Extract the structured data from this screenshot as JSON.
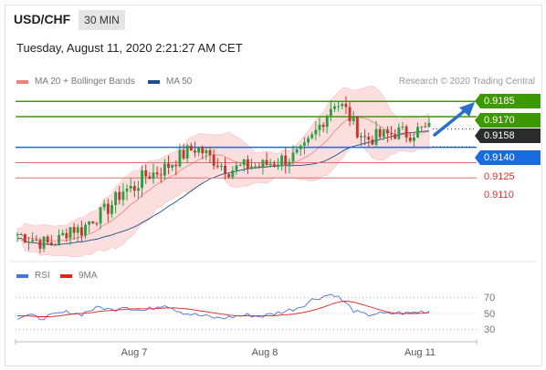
{
  "header": {
    "symbol": "USD/CHF",
    "timeframe": "30 MIN"
  },
  "datetime": "Tuesday, August 11, 2020 2:21:27 AM CET",
  "legend": {
    "main": [
      {
        "label": "MA 20 + Bollinger Bands",
        "color": "#f08080"
      },
      {
        "label": "MA 50",
        "color": "#1f4e8c"
      }
    ],
    "rsi": [
      {
        "label": "RSI",
        "color": "#4a72d8"
      },
      {
        "label": "9MA",
        "color": "#e02020"
      }
    ]
  },
  "copyright": "Research © 2020 Trading Central",
  "price_labels": [
    {
      "value": "0.9185",
      "style": "filled",
      "color": "#3c9a00"
    },
    {
      "value": "0.9170",
      "style": "filled",
      "color": "#3c9a00"
    },
    {
      "value": "0.9158",
      "style": "filled",
      "color": "#2b2b2b"
    },
    {
      "value": "0.9140",
      "style": "filled",
      "color": "#1a6be0"
    },
    {
      "value": "0.9125",
      "style": "plain",
      "color": "#d33"
    },
    {
      "value": "0.9110",
      "style": "plain",
      "color": "#d33"
    }
  ],
  "rsi_ticks": [
    "70",
    "50",
    "30"
  ],
  "x_ticks": [
    "Aug 7",
    "Aug 8",
    "Aug 11"
  ],
  "chart_data": {
    "type": "candlestick",
    "title": "USD/CHF",
    "interval": "30 MIN",
    "levels": {
      "resistance": [
        0.9185,
        0.917
      ],
      "current": 0.9158,
      "pivot": 0.914,
      "support": [
        0.9125,
        0.911
      ]
    },
    "ylim": [
      0.903,
      0.9195
    ],
    "x_labels": [
      "Aug 7",
      "Aug 8",
      "Aug 11"
    ],
    "close_path": [
      0.9055,
      0.9052,
      0.9048,
      0.9045,
      0.905,
      0.9062,
      0.9058,
      0.907,
      0.9075,
      0.9085,
      0.9098,
      0.91,
      0.9112,
      0.9115,
      0.912,
      0.9128,
      0.9135,
      0.914,
      0.9132,
      0.9125,
      0.9118,
      0.912,
      0.9122,
      0.9121,
      0.9125,
      0.9128,
      0.913,
      0.9135,
      0.915,
      0.9168,
      0.9185,
      0.9178,
      0.916,
      0.9148,
      0.915,
      0.9152,
      0.9155,
      0.9153,
      0.9157,
      0.9158
    ],
    "rsi": {
      "ylim": [
        20,
        80
      ],
      "levels": [
        70,
        50,
        30
      ],
      "series": [
        {
          "name": "RSI",
          "values": [
            45,
            48,
            44,
            46,
            50,
            52,
            49,
            55,
            58,
            54,
            60,
            56,
            53,
            58,
            62,
            55,
            50,
            48,
            46,
            44,
            45,
            47,
            48,
            46,
            49,
            52,
            55,
            60,
            68,
            72,
            75,
            64,
            52,
            48,
            50,
            49,
            51,
            50,
            52,
            53
          ]
        },
        {
          "name": "9MA",
          "values": [
            47,
            47,
            46,
            46,
            47,
            49,
            50,
            51,
            53,
            54,
            55,
            56,
            56,
            56,
            57,
            57,
            56,
            54,
            52,
            50,
            48,
            47,
            47,
            47,
            47,
            48,
            49,
            51,
            54,
            58,
            63,
            66,
            64,
            60,
            56,
            52,
            50,
            50,
            50,
            51
          ]
        }
      ]
    }
  }
}
